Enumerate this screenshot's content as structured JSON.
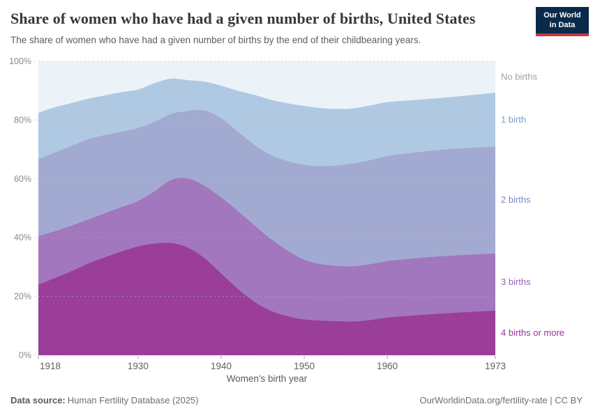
{
  "header": {
    "title": "Share of women who have had a given number of births, United States",
    "subtitle": "The share of women who have had a given number of births by the end of their childbearing years."
  },
  "logo": {
    "line1": "Our World",
    "line2": "in Data",
    "bg": "#0b2a4a",
    "accent": "#c9353d"
  },
  "chart_data": {
    "type": "area",
    "stacked": true,
    "title": "Share of women who have had a given number of births, United States",
    "xlabel": "Women's birth year",
    "ylabel": "",
    "xlim": [
      1918,
      1973
    ],
    "ylim": [
      0,
      100
    ],
    "xticks": [
      1918,
      1930,
      1940,
      1950,
      1960,
      1973
    ],
    "yticks": [
      0,
      20,
      40,
      60,
      80,
      100
    ],
    "ytick_suffix": "%",
    "grid": "dashed-horizontal",
    "legend": "right-inline-labels",
    "x": [
      1918,
      1920,
      1922,
      1924,
      1926,
      1928,
      1930,
      1932,
      1934,
      1936,
      1938,
      1940,
      1942,
      1944,
      1946,
      1948,
      1950,
      1952,
      1954,
      1956,
      1958,
      1960,
      1963,
      1966,
      1969,
      1973
    ],
    "series": [
      {
        "name": "4 births or more",
        "color": "#9a3e9a",
        "label_color": "#99339a",
        "values": [
          24.0,
          26.3,
          28.6,
          31.2,
          33.3,
          35.3,
          37.0,
          38.0,
          38.2,
          36.6,
          33.0,
          27.8,
          22.6,
          18.2,
          15.1,
          13.3,
          12.2,
          11.8,
          11.6,
          11.5,
          12.0,
          12.8,
          13.5,
          14.1,
          14.6,
          15.2
        ]
      },
      {
        "name": "3 births",
        "color": "#a277be",
        "label_color": "#9566b4",
        "values": [
          16.5,
          15.9,
          15.5,
          15.0,
          15.0,
          15.1,
          15.5,
          17.8,
          21.5,
          23.6,
          24.6,
          25.9,
          26.5,
          26.0,
          24.4,
          22.3,
          20.3,
          19.2,
          18.8,
          18.8,
          19.0,
          19.2,
          19.4,
          19.5,
          19.5,
          19.4
        ]
      },
      {
        "name": "2 births",
        "color": "#a3aad1",
        "label_color": "#7f87c3",
        "values": [
          26.2,
          26.8,
          27.1,
          27.3,
          26.6,
          25.6,
          24.8,
          23.6,
          22.4,
          22.9,
          25.7,
          26.9,
          27.0,
          27.4,
          28.6,
          30.4,
          32.3,
          33.3,
          34.2,
          35.0,
          35.4,
          35.8,
          36.0,
          36.2,
          36.3,
          36.4
        ]
      },
      {
        "name": "1 birth",
        "color": "#b0c9e2",
        "label_color": "#7d9dc7",
        "values": [
          15.8,
          15.4,
          14.6,
          13.8,
          13.5,
          13.5,
          13.1,
          13.2,
          12.0,
          10.5,
          9.8,
          11.1,
          13.9,
          17.0,
          18.8,
          19.7,
          20.0,
          19.8,
          19.2,
          18.7,
          18.6,
          18.3,
          17.9,
          17.6,
          17.8,
          18.3
        ]
      },
      {
        "name": "No births",
        "color": "#ebf3f9",
        "label_color": "#9ba3ab",
        "values": [
          17.5,
          15.6,
          14.2,
          12.7,
          11.6,
          10.5,
          9.6,
          7.4,
          5.9,
          6.4,
          6.9,
          8.3,
          10.0,
          11.4,
          13.1,
          14.3,
          15.2,
          15.9,
          16.2,
          16.0,
          15.0,
          13.9,
          13.2,
          12.6,
          11.8,
          10.7
        ]
      }
    ],
    "axis_colors": {
      "tick_label": "#8b8b8b",
      "x_label": "#5f5f5f",
      "axis_title": "#5b5b5b",
      "gridline": "#a8b4c4"
    }
  },
  "footer": {
    "source_label": "Data source:",
    "source_value": "Human Fertility Database (2025)",
    "right": "OurWorldinData.org/fertility-rate | CC BY"
  }
}
